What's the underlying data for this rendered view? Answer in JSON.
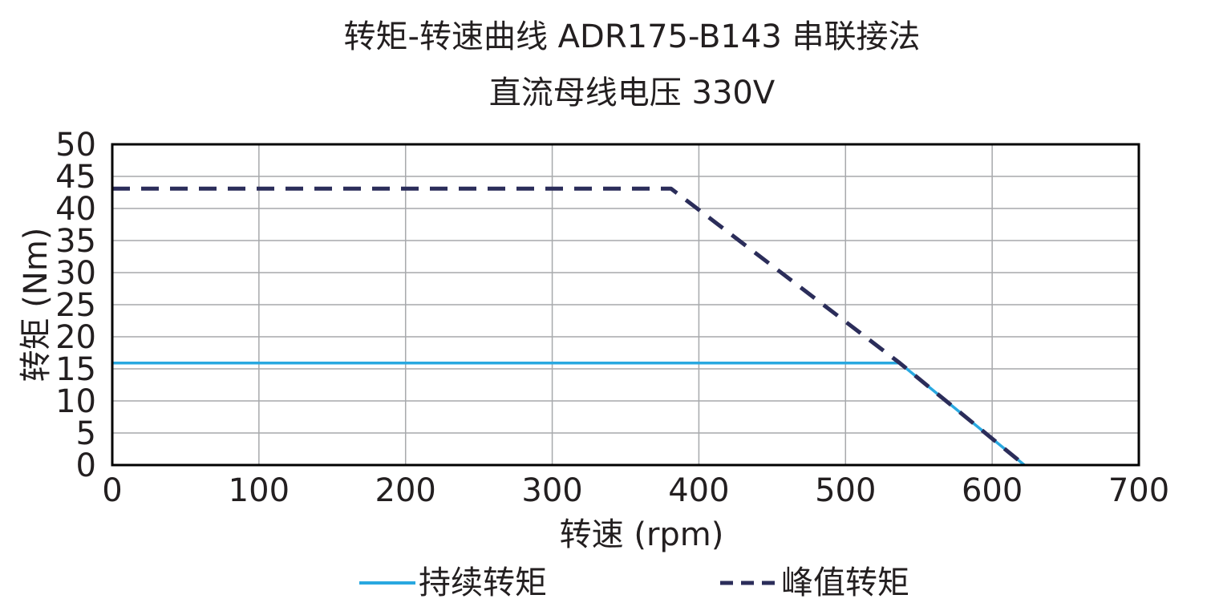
{
  "chart_data": {
    "type": "line",
    "title": "转矩-转速曲线 ADR175-B143 串联接法",
    "subtitle": "直流母线电压 330V",
    "xlabel": "转速 (rpm)",
    "ylabel": "转矩 (Nm)",
    "xlim": [
      0,
      700
    ],
    "ylim": [
      0,
      50
    ],
    "xticks": [
      "0",
      "100",
      "200",
      "300",
      "400",
      "500",
      "600",
      "700"
    ],
    "yticks": [
      "0",
      "5",
      "10",
      "15",
      "20",
      "25",
      "30",
      "35",
      "40",
      "45",
      "50"
    ],
    "grid": true,
    "legend_position": "bottom",
    "series": [
      {
        "name": "持续转矩",
        "style": "solid",
        "color": "#29a8e0",
        "x": [
          0,
          537,
          622
        ],
        "y": [
          15.9,
          15.9,
          0
        ]
      },
      {
        "name": "峰值转矩",
        "style": "dashed",
        "color": "#2b2d5a",
        "x": [
          0,
          381,
          537,
          622
        ],
        "y": [
          43.1,
          43.1,
          15.9,
          0
        ]
      }
    ]
  }
}
